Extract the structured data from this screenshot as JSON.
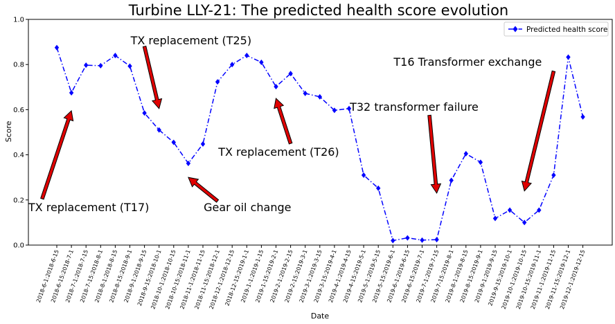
{
  "chart_data": {
    "type": "line",
    "title": "Turbine LLY-21: The predicted health score evolution",
    "xlabel": "Date",
    "ylabel": "Score",
    "ylim": [
      0,
      1.0
    ],
    "yticks": [
      "0.0",
      "0.2",
      "0.4",
      "0.6",
      "0.8",
      "1.0"
    ],
    "grid": false,
    "legend_position": "top-right",
    "categories": [
      "2018-6-1:2018-6-15",
      "2018-6-15:2018-7-1",
      "2018-7-1:2018-7-15",
      "2018-7-15:2018-8-1",
      "2018-8-1:2018-8-15",
      "2018-8-15:2018-9-1",
      "2018-9-1:2018-9-15",
      "2018-9-15:2018-10-1",
      "2018-10-1:2018-10-15",
      "2018-10-15:2018-11-1",
      "2018-11-1:2018-11-15",
      "2018-11-15:2018-12-1",
      "2018-12-1:2018-12-15",
      "2018-12-15:2019-1-1",
      "2019-1-1:2019-1-15",
      "2019-1-15:2019-2-1",
      "2019-2-1:2019-2-15",
      "2019-2-15:2019-3-1",
      "2019-3-1:2019-3-15",
      "2019-3-15:2019-4-1",
      "2019-4-1:2019-4-15",
      "2019-4-15:2019-5-1",
      "2019-5-1:2019-5-15",
      "2019-5-15:2019-6-1",
      "2019-6-1:2019-6-15",
      "2019-6-15:2019-7-1",
      "2019-7-1:2019-7-15",
      "2019-7-15:2019-8-1",
      "2019-8-1:2019-8-15",
      "2019-8-15:2019-9-1",
      "2019-9-1:2019-9-15",
      "2019-9-15:2019-10-1",
      "2019-10-1:2019-10-15",
      "2019-10-15:2019-11-1",
      "2019-11-1:2019-11-15",
      "2019-11-15:2019-12-1",
      "2019-12-1:2019-12-15"
    ],
    "series": [
      {
        "name": "Predicted health score",
        "color": "#0000ff",
        "marker": "diamond",
        "linestyle": "dash-dot",
        "values": [
          0.875,
          0.675,
          0.797,
          0.795,
          0.84,
          0.793,
          0.585,
          0.51,
          0.455,
          0.362,
          0.448,
          0.723,
          0.8,
          0.84,
          0.81,
          0.702,
          0.76,
          0.672,
          0.657,
          0.597,
          0.605,
          0.31,
          0.252,
          0.02,
          0.032,
          0.022,
          0.024,
          0.287,
          0.405,
          0.367,
          0.118,
          0.155,
          0.1,
          0.155,
          0.31,
          0.833,
          0.568
        ]
      }
    ],
    "annotations": [
      {
        "text": "TX replacement (T17)",
        "text_x": -1.0,
        "text_y": 0.15,
        "arrow_from_x": -1.0,
        "arrow_from_y": 0.205,
        "point_x": 1.0,
        "point_y": 0.595
      },
      {
        "text": "TX replacement (T25)",
        "text_x": 6.0,
        "text_y": 0.89,
        "arrow_from_x": 6.0,
        "arrow_from_y": 0.88,
        "point_x": 7.0,
        "point_y": 0.605
      },
      {
        "text": "Gear oil change",
        "text_x": 11.0,
        "text_y": 0.15,
        "arrow_from_x": 11.0,
        "arrow_from_y": 0.195,
        "point_x": 9.0,
        "point_y": 0.3
      },
      {
        "text": "TX replacement (T26)",
        "text_x": 12.0,
        "text_y": 0.395,
        "arrow_from_x": 16.0,
        "arrow_from_y": 0.45,
        "point_x": 15.0,
        "point_y": 0.65
      },
      {
        "text": "T32 transformer failure",
        "text_x": 21.0,
        "text_y": 0.595,
        "arrow_from_x": 25.5,
        "arrow_from_y": 0.575,
        "point_x": 26.0,
        "point_y": 0.23
      },
      {
        "text": "T16 Transformer exchange",
        "text_x": 24.0,
        "text_y": 0.795,
        "arrow_from_x": 34.0,
        "arrow_from_y": 0.77,
        "point_x": 32.0,
        "point_y": 0.24
      }
    ]
  }
}
